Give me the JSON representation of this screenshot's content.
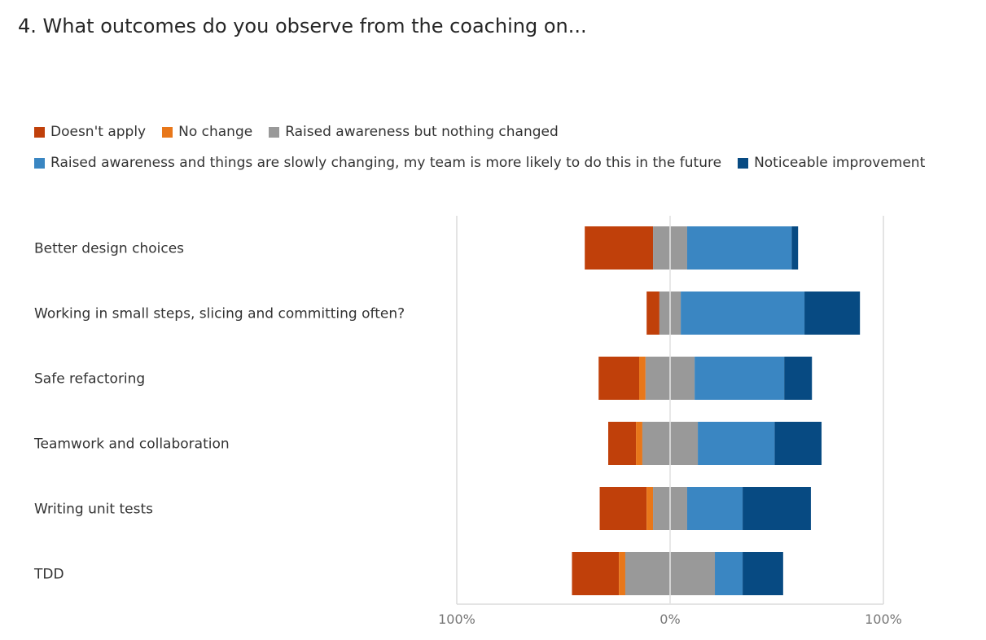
{
  "question": "4. What outcomes do you observe from the coaching on...",
  "chart_data": {
    "type": "bar",
    "orientation": "horizontal",
    "stacked": "diverging",
    "categories": [
      "Better design choices",
      "Working in small steps, slicing and committing often?",
      "Safe refactoring",
      "Teamwork and collaboration",
      "Writing unit tests",
      "TDD"
    ],
    "series": [
      {
        "name": "Doesn't apply",
        "color": "#c0400a",
        "values": [
          32,
          6,
          19,
          13,
          22,
          22
        ]
      },
      {
        "name": "No change",
        "color": "#e8771a",
        "values": [
          0,
          0,
          3,
          3,
          3,
          3
        ]
      },
      {
        "name": "Raised awareness but nothing changed",
        "color": "#999999",
        "values": [
          16,
          10,
          23,
          26,
          16,
          42
        ]
      },
      {
        "name": "Raised awareness and things are slowly changing, my team is more likely to do this in the future",
        "color": "#3a86c2",
        "values": [
          49,
          58,
          42,
          36,
          26,
          13
        ]
      },
      {
        "name": "Noticeable improvement",
        "color": "#074a82",
        "values": [
          3,
          26,
          13,
          22,
          32,
          19
        ]
      }
    ],
    "ticks": [
      "100%",
      "0%",
      "100%"
    ],
    "xlim": [
      -100,
      100
    ],
    "grid": true,
    "legend_position": "top"
  }
}
